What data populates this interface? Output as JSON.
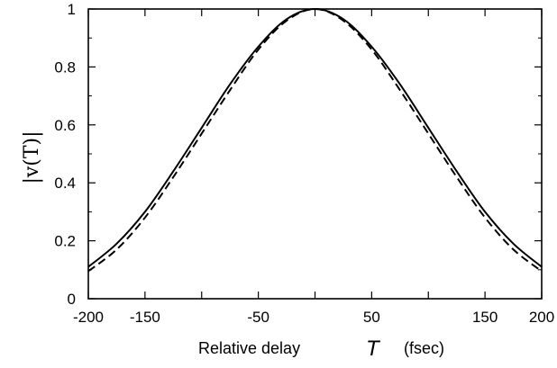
{
  "chart_data": {
    "type": "line",
    "title": "",
    "xlabel": "Relative delay",
    "xlabel_symbol": "T",
    "xlabel_unit": "(fsec)",
    "ylabel": "|v(T)|",
    "xlim": [
      -200,
      200
    ],
    "ylim": [
      0,
      1
    ],
    "x_tick_labels": [
      "-200",
      "-150",
      "-50",
      "50",
      "150",
      "200"
    ],
    "x_tick_values": [
      -200,
      -150,
      -50,
      50,
      150,
      200
    ],
    "x_minor_ticks": [
      -100,
      0,
      100
    ],
    "y_tick_labels": [
      "0",
      "0.2",
      "0.4",
      "0.6",
      "0.8",
      "1"
    ],
    "y_tick_values": [
      0,
      0.2,
      0.4,
      0.6,
      0.8,
      1
    ],
    "grid": false,
    "series": [
      {
        "style": "solid",
        "x": [
          -200,
          -175,
          -150,
          -125,
          -100,
          -75,
          -50,
          -25,
          0,
          25,
          50,
          75,
          100,
          125,
          150,
          175,
          200
        ],
        "y": [
          0.11,
          0.19,
          0.3,
          0.44,
          0.59,
          0.74,
          0.87,
          0.965,
          1.0,
          0.965,
          0.87,
          0.74,
          0.59,
          0.44,
          0.3,
          0.19,
          0.11
        ]
      },
      {
        "style": "dashed",
        "x": [
          -200,
          -175,
          -150,
          -125,
          -100,
          -75,
          -50,
          -25,
          0,
          25,
          50,
          75,
          100,
          125,
          150,
          175,
          200
        ],
        "y": [
          0.095,
          0.17,
          0.28,
          0.42,
          0.57,
          0.72,
          0.86,
          0.96,
          1.0,
          0.96,
          0.86,
          0.72,
          0.57,
          0.42,
          0.28,
          0.17,
          0.095
        ]
      }
    ]
  }
}
